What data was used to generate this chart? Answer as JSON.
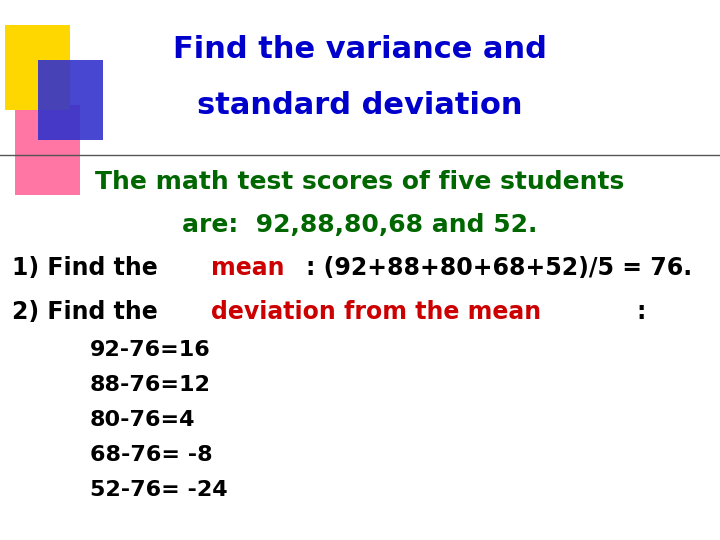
{
  "title_line1": "Find the variance and",
  "title_line2": "standard deviation",
  "title_color": "#0000CC",
  "background_color": "#FFFFFF",
  "line1_text_green": "The math test scores of five students",
  "line2_text_green": "are:  92,88,80,68 and 52.",
  "green_color": "#006600",
  "step1_black_color": "#000000",
  "step1_red_color": "#CC0000",
  "deviations": [
    "92-76=16",
    "88-76=12",
    "80-76=4",
    "68-76= -8",
    "52-76= -24"
  ],
  "deviation_color": "#000000",
  "decorator_colors": {
    "yellow": "#FFD700",
    "pink": "#FF6699",
    "blue": "#3333CC"
  }
}
